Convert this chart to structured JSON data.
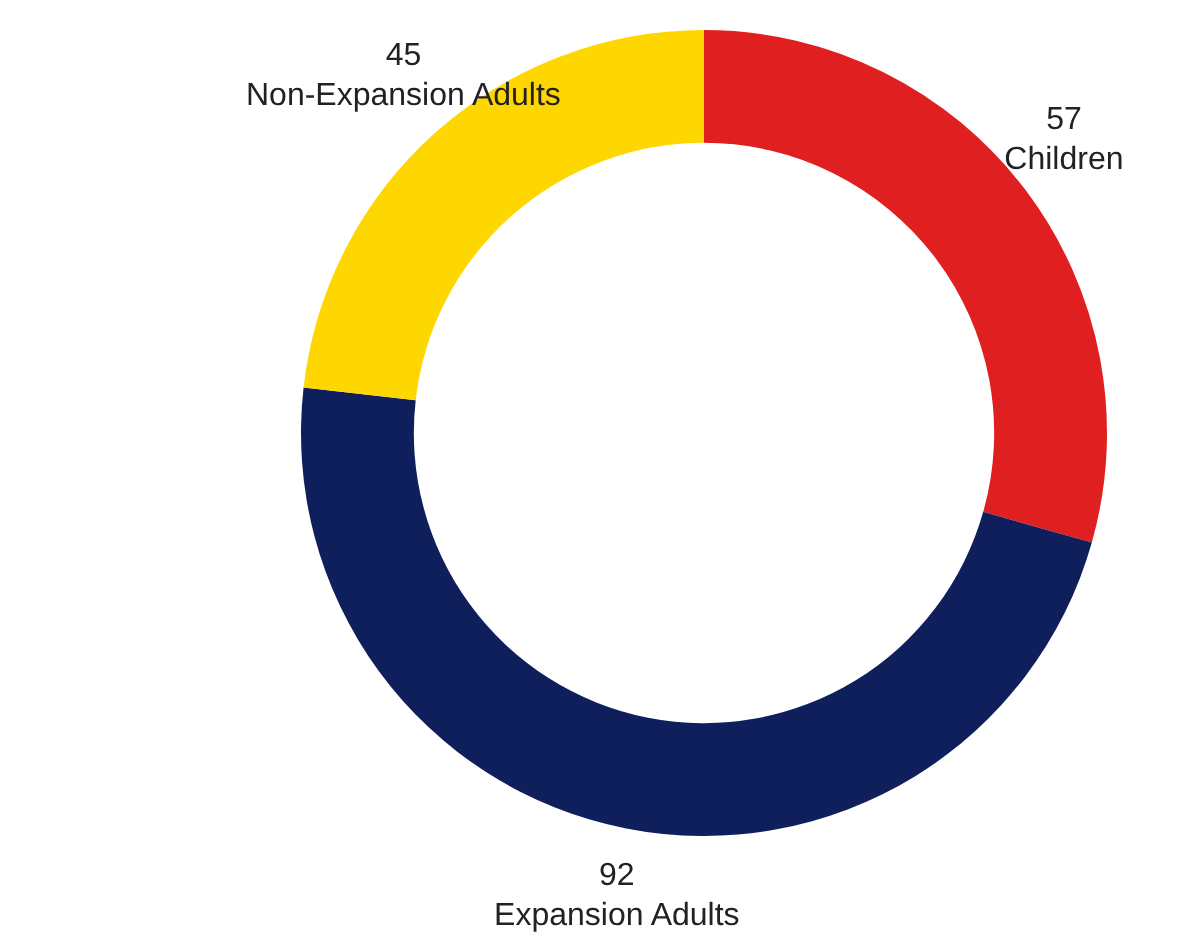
{
  "chart_data": {
    "type": "donut",
    "categories": [
      "Children",
      "Expansion Adults",
      "Non-Expansion Adults"
    ],
    "values": [
      57,
      92,
      45
    ],
    "colors": [
      "#e02020",
      "#0f1f5c",
      "#ffd700"
    ],
    "data_labels": true,
    "legend": false
  }
}
